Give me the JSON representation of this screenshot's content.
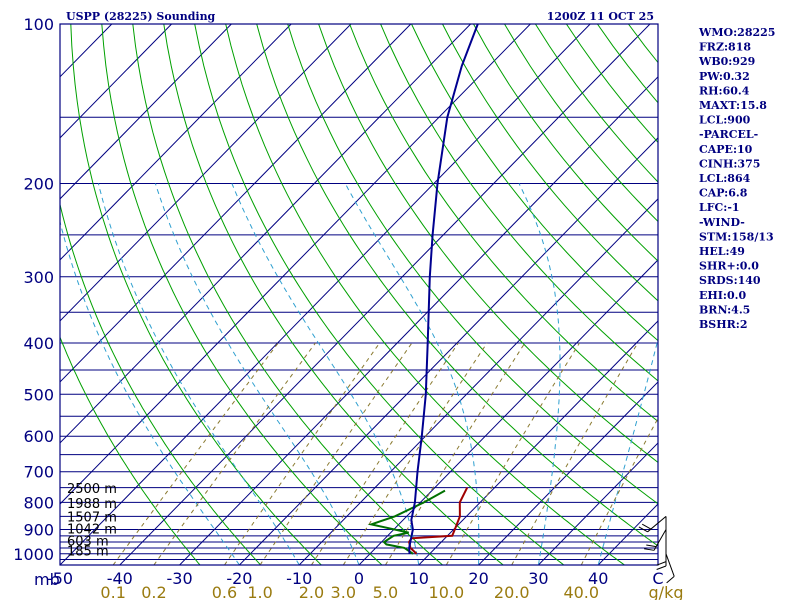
{
  "chart_data": {
    "type": "line",
    "title": "USPP (28225) Sounding",
    "datetime": "1200Z 11 OCT 25",
    "y_axis": {
      "unit": "mb",
      "scale": "log",
      "range": [
        1050,
        100
      ],
      "tick_labels": [
        "100",
        "200",
        "300",
        "400",
        "500",
        "600",
        "700",
        "800",
        "900",
        "1000"
      ],
      "isobars": [
        100,
        150,
        200,
        250,
        300,
        350,
        400,
        450,
        500,
        550,
        600,
        650,
        700,
        750,
        800,
        850,
        900,
        925,
        950,
        975,
        1000,
        1025
      ]
    },
    "x_axis": {
      "unit": "C",
      "range": [
        -50,
        50
      ],
      "tick_labels": [
        "-50",
        "-40",
        "-30",
        "-20",
        "-10",
        "0",
        "10",
        "20",
        "30",
        "40",
        "C"
      ],
      "tick_values": [
        -50,
        -40,
        -30,
        -20,
        -10,
        0,
        10,
        20,
        30,
        40,
        50
      ]
    },
    "mixing_ratio_labels": [
      "0.1",
      "0.2",
      "0.6",
      "1.0",
      "2.0",
      "3.0",
      "5.0",
      "10.0",
      "20.0",
      "40.0",
      "g/kg"
    ],
    "mixing_ratio_values": [
      0.1,
      0.2,
      0.6,
      1.0,
      2.0,
      3.0,
      5.0,
      10.0,
      20.0,
      40.0
    ],
    "height_labels": [
      {
        "text": "2500 m",
        "p": 755
      },
      {
        "text": "1988 m",
        "p": 805
      },
      {
        "text": "1507 m",
        "p": 855
      },
      {
        "text": "1042 m",
        "p": 900
      },
      {
        "text": "603 m",
        "p": 948
      },
      {
        "text": "185 m",
        "p": 990
      }
    ],
    "series": [
      {
        "name": "Temperature",
        "color": "#a00000",
        "points": [
          [
            1000,
            7.8
          ],
          [
            975,
            5.8
          ],
          [
            950,
            4.6
          ],
          [
            935,
            4.4
          ],
          [
            925,
            10.8
          ],
          [
            900,
            10.2
          ],
          [
            850,
            8.9
          ],
          [
            800,
            6.6
          ],
          [
            750,
            5.4
          ]
        ]
      },
      {
        "name": "Dewpoint",
        "color": "#007000",
        "points": [
          [
            1000,
            7.2
          ],
          [
            975,
            4.8
          ],
          [
            960,
            1.2
          ],
          [
            950,
            0.4
          ],
          [
            925,
            1.0
          ],
          [
            912,
            3.0
          ],
          [
            880,
            -4.6
          ],
          [
            850,
            -2.0
          ],
          [
            800,
            0.6
          ],
          [
            760,
            2.2
          ]
        ]
      },
      {
        "name": "Parcel",
        "color": "#000090",
        "points": [
          [
            1000,
            6.6
          ],
          [
            975,
            5.6
          ],
          [
            950,
            4.8
          ],
          [
            900,
            3.2
          ],
          [
            864,
            1.4
          ],
          [
            800,
            -0.9
          ],
          [
            700,
            -5.5
          ],
          [
            600,
            -10.6
          ],
          [
            500,
            -16.8
          ],
          [
            400,
            -24.9
          ],
          [
            300,
            -35.4
          ],
          [
            250,
            -41.8
          ],
          [
            200,
            -49.4
          ],
          [
            150,
            -58.6
          ],
          [
            120,
            -64.6
          ],
          [
            100,
            -68.8
          ]
        ]
      }
    ],
    "wind_profile": [
      {
        "p": 1000,
        "dir": 160,
        "spd": 10
      },
      {
        "p": 950,
        "dir": 180,
        "spd": 15
      },
      {
        "p": 900,
        "dir": 210,
        "spd": 20
      },
      {
        "p": 850,
        "dir": 230,
        "spd": 20
      }
    ],
    "indices": [
      "WMO:28225",
      "FRZ:818",
      "WB0:929",
      "PW:0.32",
      "RH:60.4",
      "MAXT:15.8",
      "LCL:900",
      "-PARCEL-",
      "CAPE:10",
      "CINH:375",
      "LCL:864",
      "CAP:6.8",
      "LFC:-1",
      "-WIND-",
      "STM:158/13",
      "HEL:49",
      "SHR+:0.0",
      "SRDS:140",
      "EHI:0.0",
      "BRN:4.5",
      "BSHR:2"
    ],
    "colors": {
      "frame": "#000080",
      "isotherm": "#000080",
      "dry_adiabat": "#00a000",
      "moist_adiabat": "#30a0d0",
      "mixing_ratio": "#8a7a30",
      "mixing_ratio_text": "#9a7b10"
    }
  }
}
